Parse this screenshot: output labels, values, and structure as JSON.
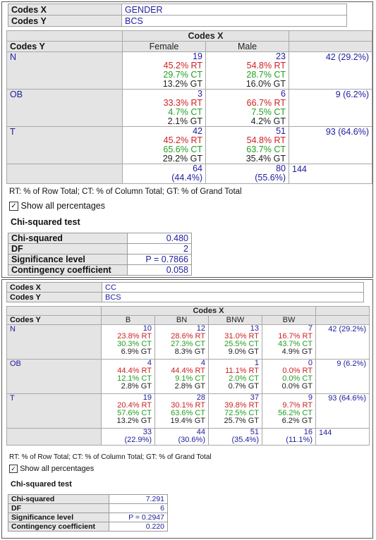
{
  "panel1": {
    "codes_x_label": "Codes X",
    "codes_x_value": "GENDER",
    "codes_y_label": "Codes Y",
    "codes_y_value": "BCS",
    "header_codes_x": "Codes X",
    "header_codes_y": "Codes Y",
    "columns": [
      "Female",
      "Male"
    ],
    "rows": [
      {
        "label": "N",
        "total": "42 (29.2%)",
        "cells": [
          {
            "n": "19",
            "rt": "45.2% RT",
            "ct": "29.7% CT",
            "gt": "13.2% GT"
          },
          {
            "n": "23",
            "rt": "54.8% RT",
            "ct": "28.7% CT",
            "gt": "16.0% GT"
          }
        ]
      },
      {
        "label": "OB",
        "total": "9 (6.2%)",
        "cells": [
          {
            "n": "3",
            "rt": "33.3% RT",
            "ct": "4.7% CT",
            "gt": "2.1% GT"
          },
          {
            "n": "6",
            "rt": "66.7% RT",
            "ct": "7.5% CT",
            "gt": "4.2% GT"
          }
        ]
      },
      {
        "label": "T",
        "total": "93 (64.6%)",
        "cells": [
          {
            "n": "42",
            "rt": "45.2% RT",
            "ct": "65.6% CT",
            "gt": "29.2% GT"
          },
          {
            "n": "51",
            "rt": "54.8% RT",
            "ct": "63.7% CT",
            "gt": "35.4% GT"
          }
        ]
      }
    ],
    "col_totals": [
      {
        "n": "64",
        "pct": "(44.4%)"
      },
      {
        "n": "80",
        "pct": "(55.6%)"
      }
    ],
    "grand_total": "144",
    "legend": "RT: % of Row Total; CT: % of Column Total; GT: % of Grand Total",
    "show_all_label": "Show all percentages",
    "show_all_checked": "✓",
    "chi_title": "Chi-squared test",
    "stats": [
      {
        "label": "Chi-squared",
        "value": "0.480"
      },
      {
        "label": "DF",
        "value": "2"
      },
      {
        "label": "Significance level",
        "value": "P = 0.7866"
      },
      {
        "label": "Contingency coefficient",
        "value": "0.058"
      }
    ]
  },
  "panel2": {
    "codes_x_label": "Codes X",
    "codes_x_value": "CC",
    "codes_y_label": "Codes Y",
    "codes_y_value": "BCS",
    "header_codes_x": "Codes X",
    "header_codes_y": "Codes Y",
    "columns": [
      "B",
      "BN",
      "BNW",
      "BW"
    ],
    "rows": [
      {
        "label": "N",
        "total": "42 (29.2%)",
        "cells": [
          {
            "n": "10",
            "rt": "23.8% RT",
            "ct": "30.3% CT",
            "gt": "6.9% GT"
          },
          {
            "n": "12",
            "rt": "28.6% RT",
            "ct": "27.3% CT",
            "gt": "8.3% GT"
          },
          {
            "n": "13",
            "rt": "31.0% RT",
            "ct": "25.5% CT",
            "gt": "9.0% GT"
          },
          {
            "n": "7",
            "rt": "16.7% RT",
            "ct": "43.7% CT",
            "gt": "4.9% GT"
          }
        ]
      },
      {
        "label": "OB",
        "total": "9 (6.2%)",
        "cells": [
          {
            "n": "4",
            "rt": "44.4% RT",
            "ct": "12.1% CT",
            "gt": "2.8% GT"
          },
          {
            "n": "4",
            "rt": "44.4% RT",
            "ct": "9.1% CT",
            "gt": "2.8% GT"
          },
          {
            "n": "1",
            "rt": "11.1% RT",
            "ct": "2.0% CT",
            "gt": "0.7% GT"
          },
          {
            "n": "0",
            "rt": "0.0% RT",
            "ct": "0.0% CT",
            "gt": "0.0% GT"
          }
        ]
      },
      {
        "label": "T",
        "total": "93 (64.6%)",
        "cells": [
          {
            "n": "19",
            "rt": "20.4% RT",
            "ct": "57.6% CT",
            "gt": "13.2% GT"
          },
          {
            "n": "28",
            "rt": "30.1% RT",
            "ct": "63.6% CT",
            "gt": "19.4% GT"
          },
          {
            "n": "37",
            "rt": "39.8% RT",
            "ct": "72.5% CT",
            "gt": "25.7% GT"
          },
          {
            "n": "9",
            "rt": "9.7% RT",
            "ct": "56.2% CT",
            "gt": "6.2% GT"
          }
        ]
      }
    ],
    "col_totals": [
      {
        "n": "33",
        "pct": "(22.9%)"
      },
      {
        "n": "44",
        "pct": "(30.6%)"
      },
      {
        "n": "51",
        "pct": "(35.4%)"
      },
      {
        "n": "16",
        "pct": "(11.1%)"
      }
    ],
    "grand_total": "144",
    "legend": "RT: % of Row Total; CT: % of Column Total; GT: % of Grand Total",
    "show_all_label": "Show all percentages",
    "show_all_checked": "✓",
    "chi_title": "Chi-squared test",
    "stats": [
      {
        "label": "Chi-squared",
        "value": "7.291"
      },
      {
        "label": "DF",
        "value": "6"
      },
      {
        "label": "Significance level",
        "value": "P = 0.2947"
      },
      {
        "label": "Contingency coefficient",
        "value": "0.220"
      }
    ]
  },
  "colors": {
    "count": "#2020a0",
    "row_total": "#d02020",
    "column_total": "#20a020",
    "grand_total": "#222222",
    "header_bg": "#e4e4e4"
  }
}
